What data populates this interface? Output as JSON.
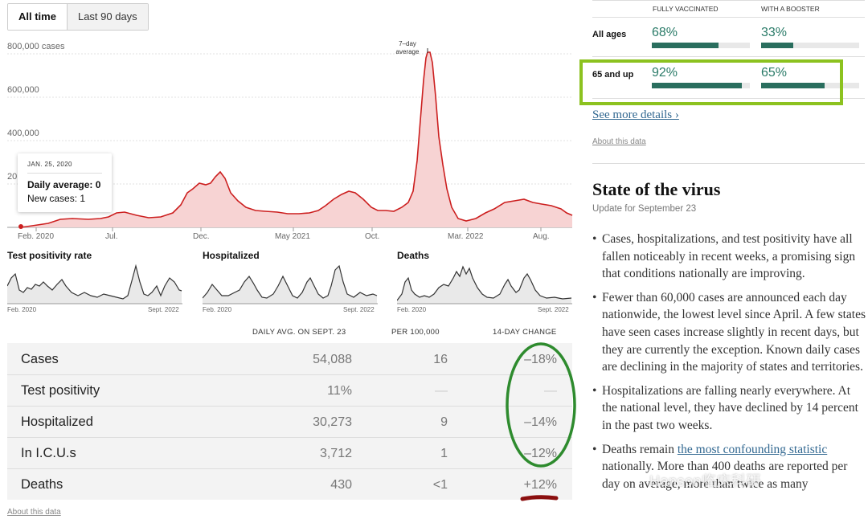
{
  "toggle": {
    "all_time": "All time",
    "last_90": "Last 90 days"
  },
  "main_chart": {
    "y_ticks": [
      "800,000 cases",
      "600,000",
      "400,000",
      "20"
    ],
    "x_ticks": [
      "Feb. 2020",
      "Jul.",
      "Dec.",
      "May 2021",
      "Oct.",
      "Mar. 2022",
      "Aug."
    ],
    "avg_label_1": "7–day",
    "avg_label_2": "average",
    "tooltip": {
      "date": "JAN. 25, 2020",
      "daily_average": "Daily average: 0",
      "new_cases": "New cases: 1"
    },
    "line_color": "#cc1f1f",
    "fill_color": "#f7d3d3"
  },
  "chart_data": {
    "type": "area",
    "title": "",
    "ylabel": "cases",
    "ylim": [
      0,
      800000
    ],
    "x": [
      "2020-02",
      "2020-04",
      "2020-07",
      "2020-10",
      "2020-12",
      "2021-01",
      "2021-03",
      "2021-06",
      "2021-09",
      "2021-10",
      "2021-12",
      "2022-01",
      "2022-02",
      "2022-04",
      "2022-06",
      "2022-08",
      "2022-09"
    ],
    "series": [
      {
        "values": [
          0,
          30000,
          65000,
          55000,
          200000,
          250000,
          60000,
          15000,
          165000,
          110000,
          150000,
          800000,
          150000,
          30000,
          110000,
          105000,
          54000
        ]
      }
    ]
  },
  "small_charts": [
    {
      "title": "Test positivity rate",
      "x_start": "Feb. 2020",
      "x_end": "Sept. 2022"
    },
    {
      "title": "Hospitalized",
      "x_start": "Feb. 2020",
      "x_end": "Sept. 2022"
    },
    {
      "title": "Deaths",
      "x_start": "Feb. 2020",
      "x_end": "Sept. 2022"
    }
  ],
  "table": {
    "headers": {
      "daily": "DAILY AVG. ON SEPT. 23",
      "per": "PER 100,000",
      "change": "14-DAY CHANGE"
    },
    "rows": [
      {
        "name": "Cases",
        "daily": "54,088",
        "per": "16",
        "change": "–18%"
      },
      {
        "name": "Test positivity",
        "daily": "11%",
        "per": "—",
        "change": "—"
      },
      {
        "name": "Hospitalized",
        "daily": "30,273",
        "per": "9",
        "change": "–14%"
      },
      {
        "name": "In I.C.U.s",
        "daily": "3,712",
        "per": "1",
        "change": "–12%"
      },
      {
        "name": "Deaths",
        "daily": "430",
        "per": "<1",
        "change": "+12%"
      }
    ],
    "about": "About this data"
  },
  "vaccination": {
    "col1": "FULLY VACCINATED",
    "col2": "WITH A BOOSTER",
    "rows": [
      {
        "label": "All ages",
        "fully": "68%",
        "fully_value": 0.68,
        "booster": "33%",
        "booster_value": 0.33
      },
      {
        "label": "65 and up",
        "fully": "92%",
        "fully_value": 0.92,
        "booster": "65%",
        "booster_value": 0.65
      }
    ],
    "see_more": "See more details ›",
    "about": "About this data"
  },
  "state": {
    "title": "State of the virus",
    "update": "Update for September 23",
    "b1": "Cases, hospitalizations, and test positivity have all fallen noticeably in recent weeks, a promising sign that conditions nationally are improving.",
    "b2": "Fewer than 60,000 cases are announced each day nationwide, the lowest level since April. A few states have seen cases increase slightly in recent days, but they are currently the exception. Known daily cases are declining in the majority of states and territories.",
    "b3": "Hospitalizations are falling nearly everywhere. At the national level, they have declined by 14 percent in the past two weeks.",
    "b4_start": "Deaths remain ",
    "b4_link": "the most confounding statistic",
    "b4_end": " nationally. More than 400 deaths are reported per day on average, more than twice as many"
  },
  "watermark": "Hanson临床科研",
  "annotations": {
    "highlight_green": "#8cc21f",
    "circle_green": "#2e8b2e",
    "underline_red": "#8b0f0f"
  }
}
